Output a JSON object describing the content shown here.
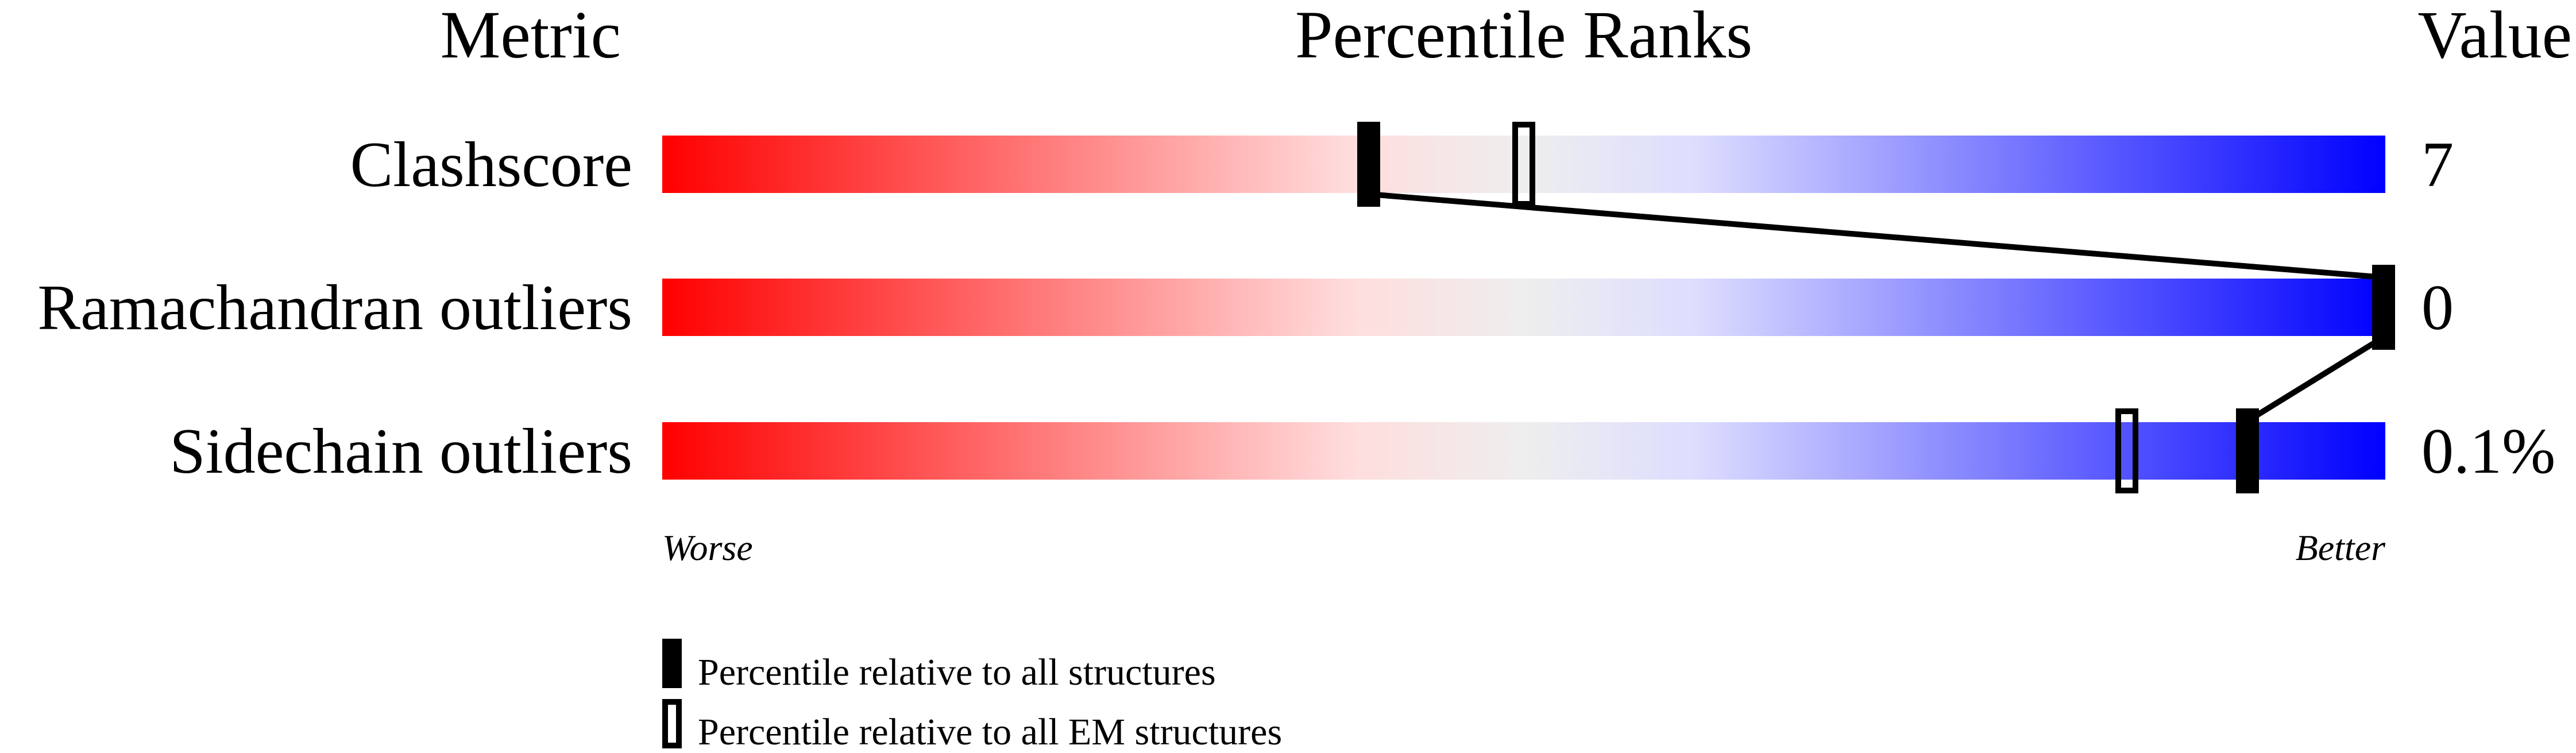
{
  "chart_data": {
    "type": "percentile-slider",
    "headers": {
      "metric": "Metric",
      "ranks": "Percentile Ranks",
      "value": "Value"
    },
    "xlim": [
      0,
      100
    ],
    "metrics": [
      {
        "name": "Clashscore",
        "value": "7",
        "percentile_all": 41,
        "percentile_em": 50
      },
      {
        "name": "Ramachandran outliers",
        "value": "0",
        "percentile_all": 100,
        "percentile_em": null
      },
      {
        "name": "Sidechain outliers",
        "value": "0.1%",
        "percentile_all": 92,
        "percentile_em": 85
      }
    ],
    "axis_labels": {
      "worse": "Worse",
      "better": "Better"
    },
    "legend": [
      {
        "marker": "filled",
        "label": "Percentile relative to all structures"
      },
      {
        "marker": "open",
        "label": "Percentile relative to all EM structures"
      }
    ],
    "gradient_colors": [
      "#ff0000",
      "#ffdddd",
      "#eeeeee",
      "#ddddff",
      "#0000ff"
    ]
  }
}
